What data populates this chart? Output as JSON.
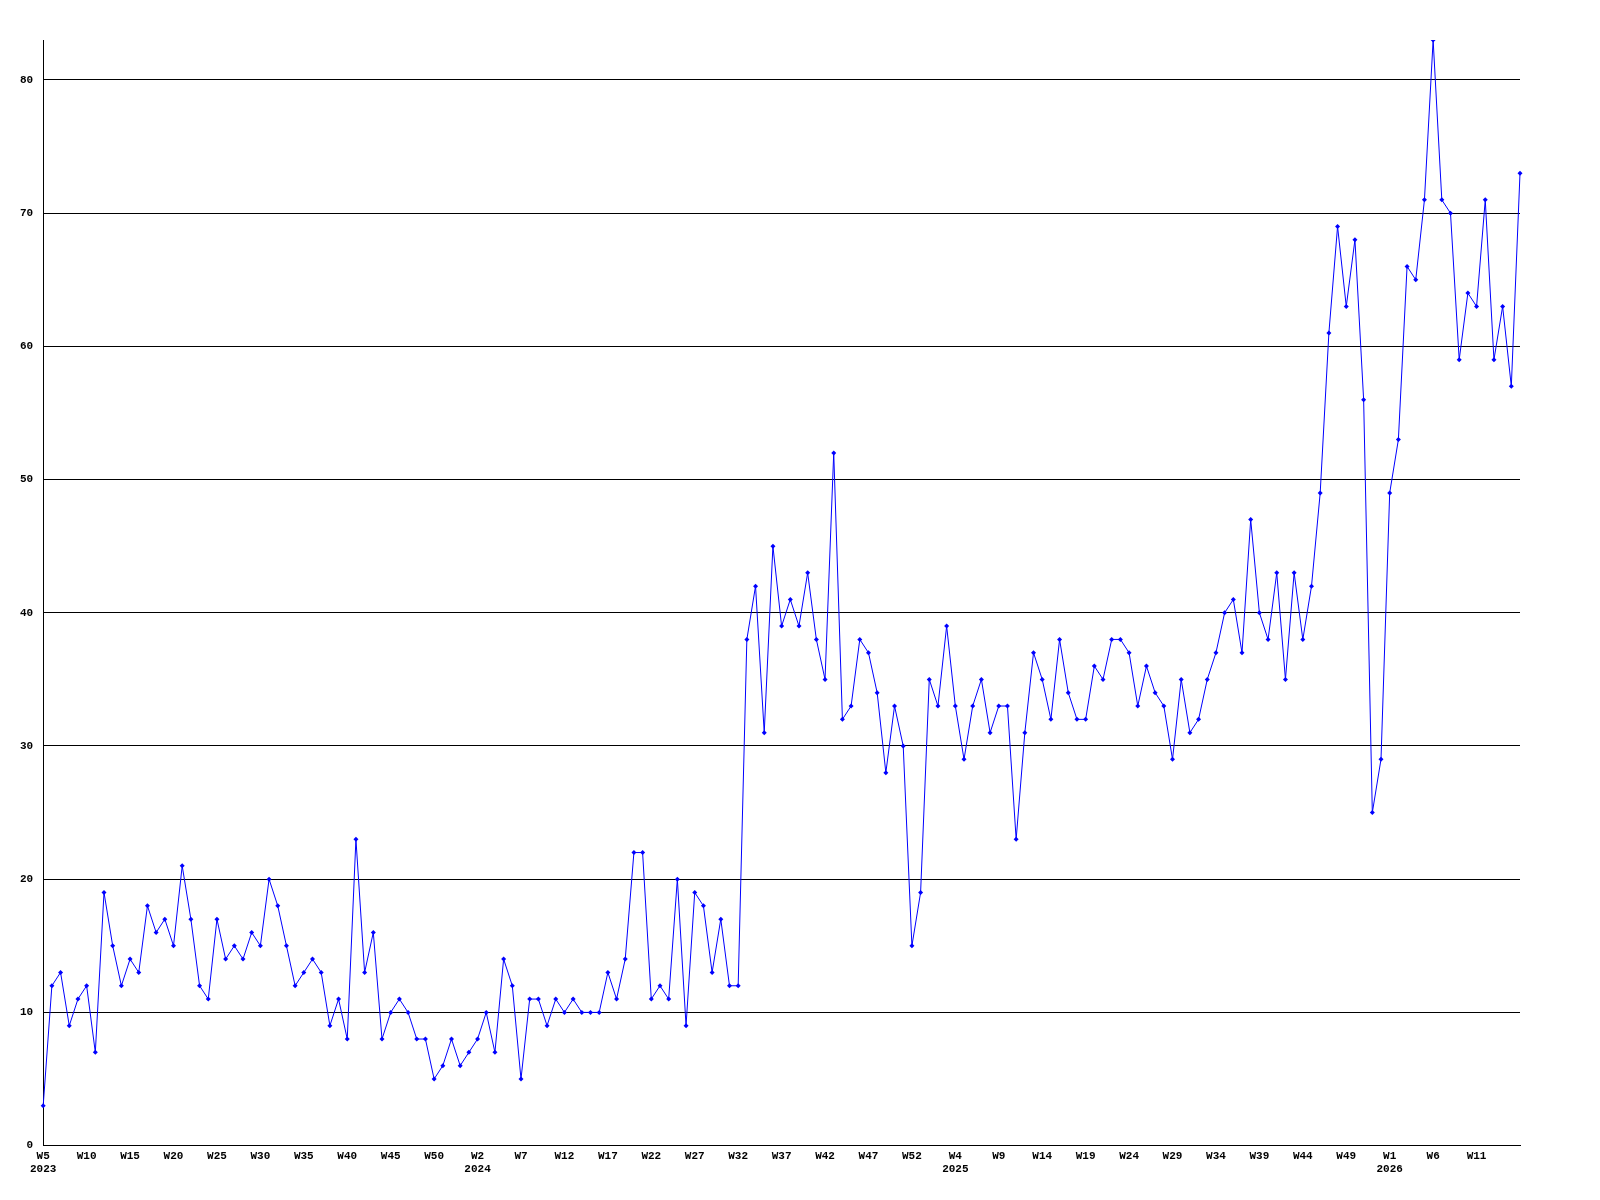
{
  "chart_data": {
    "type": "line",
    "categories": [
      "W5\n2023",
      null,
      null,
      null,
      null,
      "W10",
      null,
      null,
      null,
      null,
      "W15",
      null,
      null,
      null,
      null,
      "W20",
      null,
      null,
      null,
      null,
      "W25",
      null,
      null,
      null,
      null,
      "W30",
      null,
      null,
      null,
      null,
      "W35",
      null,
      null,
      null,
      null,
      "W40",
      null,
      null,
      null,
      null,
      "W45",
      null,
      null,
      null,
      null,
      "W50",
      null,
      null,
      null,
      null,
      "W2\n2024",
      null,
      null,
      null,
      null,
      "W7",
      null,
      null,
      null,
      null,
      "W12",
      null,
      null,
      null,
      null,
      "W17",
      null,
      null,
      null,
      null,
      "W22",
      null,
      null,
      null,
      null,
      "W27",
      null,
      null,
      null,
      null,
      "W32",
      null,
      null,
      null,
      null,
      "W37",
      null,
      null,
      null,
      null,
      "W42",
      null,
      null,
      null,
      null,
      "W47",
      null,
      null,
      null,
      null,
      "W52",
      null,
      null,
      null,
      null,
      "W4\n2025",
      null,
      null,
      null,
      null,
      "W9",
      null,
      null,
      null,
      null,
      "W14",
      null,
      null,
      null,
      null,
      "W19",
      null,
      null,
      null,
      null,
      "W24",
      null,
      null,
      null,
      null,
      "W29",
      null,
      null,
      null,
      null,
      "W34",
      null,
      null,
      null,
      null,
      "W39",
      null,
      null,
      null,
      null,
      "W44",
      null,
      null,
      null,
      null,
      "W49",
      null,
      null,
      null,
      null,
      "W1\n2026",
      null,
      null,
      null,
      null,
      "W6",
      null,
      null,
      null,
      null,
      "W11",
      null,
      null,
      null,
      null,
      null
    ],
    "series": [
      {
        "color": "#0000ff",
        "values": [
          3,
          12,
          13,
          9,
          11,
          12,
          7,
          19,
          15,
          12,
          14,
          13,
          18,
          16,
          17,
          15,
          21,
          17,
          12,
          11,
          17,
          14,
          15,
          14,
          16,
          15,
          20,
          18,
          15,
          12,
          13,
          14,
          13,
          9,
          11,
          8,
          23,
          13,
          16,
          8,
          10,
          11,
          10,
          8,
          8,
          5,
          6,
          8,
          6,
          7,
          8,
          10,
          7,
          14,
          12,
          5,
          11,
          11,
          9,
          11,
          10,
          11,
          10,
          10,
          10,
          13,
          11,
          14,
          22,
          22,
          11,
          12,
          11,
          20,
          9,
          19,
          18,
          13,
          17,
          12,
          12,
          38,
          42,
          31,
          45,
          39,
          41,
          39,
          43,
          38,
          35,
          52,
          32,
          33,
          38,
          37,
          34,
          28,
          33,
          30,
          15,
          19,
          35,
          33,
          39,
          33,
          29,
          33,
          35,
          31,
          33,
          33,
          23,
          31,
          37,
          35,
          32,
          38,
          34,
          32,
          32,
          36,
          35,
          38,
          38,
          37,
          33,
          36,
          34,
          33,
          29,
          35,
          31,
          32,
          35,
          37,
          40,
          41,
          37,
          47,
          40,
          38,
          43,
          35,
          43,
          38,
          42,
          49,
          61,
          69,
          63,
          68,
          56,
          25,
          29,
          49,
          53,
          66,
          65,
          71,
          83,
          71,
          70,
          59,
          64,
          63,
          71,
          59,
          63,
          57,
          73
        ]
      }
    ],
    "ylim": [
      0,
      83
    ],
    "yticks": [
      0,
      10,
      20,
      30,
      40,
      50,
      60,
      70,
      80
    ],
    "grid": "y",
    "legend": false,
    "marker": "diamond",
    "line_style": "solid"
  }
}
